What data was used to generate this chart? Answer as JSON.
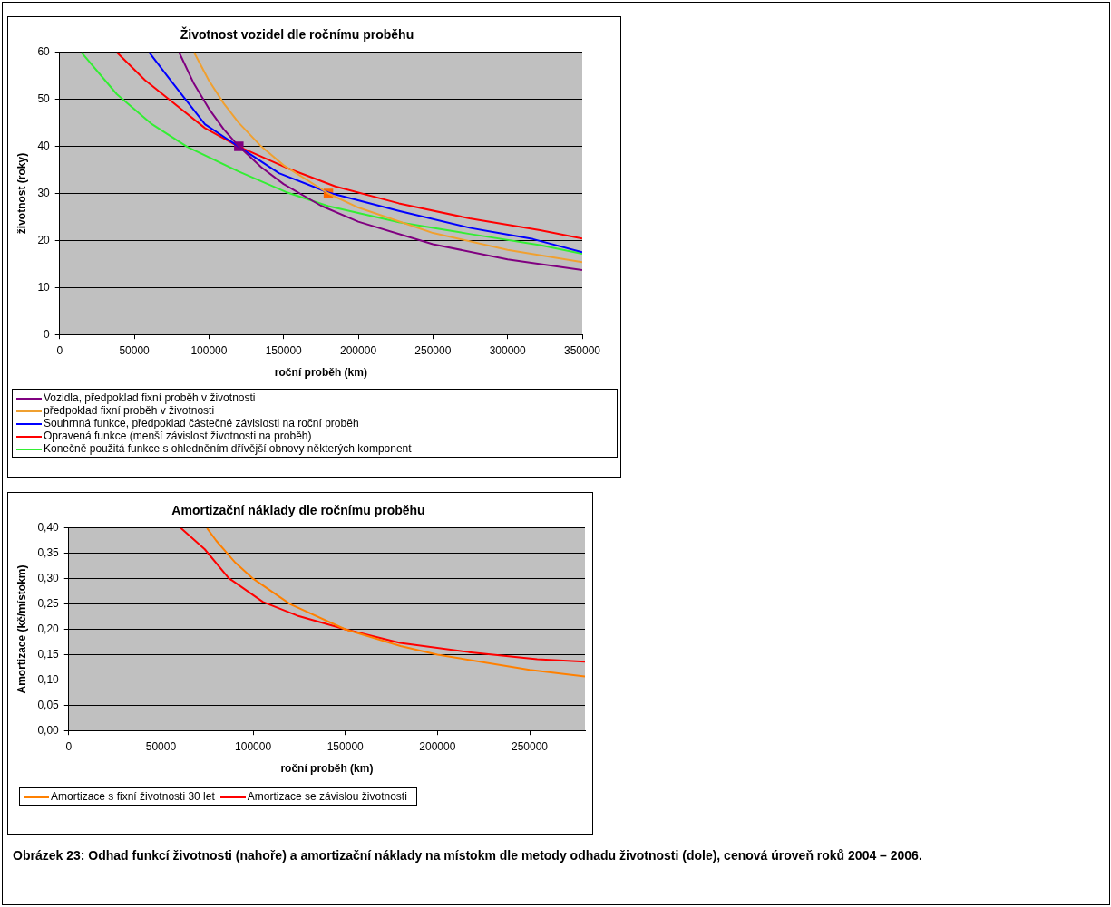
{
  "chart_data": [
    {
      "type": "line",
      "title": "Životnost vozidel dle ročnímu proběhu",
      "xlabel": "roční proběh (km)",
      "ylabel": "životnost (roky)",
      "xlim": [
        0,
        350000
      ],
      "xticks": [
        0,
        50000,
        100000,
        150000,
        200000,
        250000,
        300000,
        350000
      ],
      "ylim": [
        0,
        60
      ],
      "yticks": [
        0,
        10,
        20,
        30,
        40,
        50,
        60
      ],
      "grid": "y",
      "legend": "bottom",
      "marker": "none",
      "line_style": "solid",
      "series": [
        {
          "name": "Vozidla, předpoklad fixní proběh v životnosti",
          "color": "#800080",
          "x": [
            80000,
            90000,
            100000,
            110000,
            120000,
            135000,
            150000,
            175000,
            200000,
            250000,
            300000,
            350000
          ],
          "values": [
            60,
            53.3,
            48,
            43.6,
            40,
            35.6,
            32,
            27.4,
            24,
            19.2,
            16,
            13.7
          ]
        },
        {
          "name": "předpoklad fixní proběh v životnosti",
          "color": "#f0a030",
          "x": [
            90000,
            100000,
            110000,
            120000,
            135000,
            150000,
            180000,
            200000,
            250000,
            300000,
            350000
          ],
          "values": [
            60,
            54,
            49.1,
            45,
            40,
            36,
            30,
            27,
            21.6,
            18,
            15.4
          ]
        },
        {
          "name": "Souhrnná funkce, předpoklad částečné závislosti na roční proběh",
          "color": "#0000ff",
          "x": [
            60000,
            73700,
            97300,
            119700,
            146900,
            180000,
            227200,
            274500,
            317000,
            350000
          ],
          "values": [
            60,
            54.3,
            44.7,
            40,
            34.3,
            30.2,
            26.3,
            22.7,
            20.3,
            17.5
          ]
        },
        {
          "name": "Opravená funkce (menší závislost životnosti na proběh)",
          "color": "#ff0000",
          "x": [
            38300,
            57200,
            73700,
            97300,
            119700,
            151600,
            184700,
            227200,
            274500,
            321700,
            350000
          ],
          "values": [
            60,
            54.1,
            49.9,
            43.9,
            40,
            35.5,
            31.5,
            27.9,
            24.7,
            22.2,
            20.4
          ]
        },
        {
          "name": "Konečně použitá funkce s ohledněním dřívější obnovy některých komponent",
          "color": "#33ee33",
          "x": [
            14600,
            38300,
            61900,
            85500,
            119700,
            151600,
            180000,
            227200,
            274500,
            321700,
            350000
          ],
          "values": [
            60,
            51.1,
            44.7,
            39.9,
            34.7,
            30.3,
            27.3,
            23.9,
            21.4,
            19,
            17.2
          ]
        },
        {
          "type": "scatter",
          "marker": "square",
          "color": "#800080",
          "x": [
            120000
          ],
          "values": [
            40
          ]
        },
        {
          "type": "scatter",
          "marker": "square",
          "color": "#ff6600",
          "x": [
            180000
          ],
          "values": [
            30
          ]
        }
      ]
    },
    {
      "type": "line",
      "title": "Amortizační náklady dle ročnímu proběhu",
      "xlabel": "roční proběh (km)",
      "ylabel": "Amortizace (kč/místokm)",
      "xlim": [
        0,
        280000
      ],
      "xticks": [
        0,
        50000,
        100000,
        150000,
        200000,
        250000
      ],
      "ylim": [
        0,
        0.4
      ],
      "yticks": [
        {
          "value": 0,
          "label": "0,00"
        },
        {
          "value": 0.05,
          "label": "0,05"
        },
        {
          "value": 0.1,
          "label": "0,10"
        },
        {
          "value": 0.15,
          "label": "0,15"
        },
        {
          "value": 0.2,
          "label": "0,20"
        },
        {
          "value": 0.25,
          "label": "0,25"
        },
        {
          "value": 0.3,
          "label": "0,30"
        },
        {
          "value": 0.35,
          "label": "0,35"
        },
        {
          "value": 0.4,
          "label": "0,40"
        }
      ],
      "grid": "y",
      "legend": "bottom",
      "marker": "none",
      "line_style": "solid",
      "annotations": [
        "Obrázek 23: Odhad funkcí životnosti (nahoře) a amortizační náklady na místokm dle metody odhadu životnosti (dole), cenová úroveň roků 2004 – 2006."
      ],
      "series": [
        {
          "name": "Amortizace s fixní životnosti 30 let",
          "color": "#ff8000",
          "x": [
            75000,
            80000,
            90000,
            100000,
            120000,
            150000,
            180000,
            200000,
            250000,
            280000
          ],
          "values": [
            0.4,
            0.375,
            0.333,
            0.3,
            0.25,
            0.2,
            0.167,
            0.15,
            0.12,
            0.107
          ]
        },
        {
          "name": "Amortizace se závislou životnosti",
          "color": "#ff0000",
          "x": [
            60800,
            73800,
            86800,
            105400,
            124000,
            150000,
            179700,
            216900,
            254100,
            280000
          ],
          "values": [
            0.4,
            0.358,
            0.301,
            0.254,
            0.227,
            0.2,
            0.173,
            0.155,
            0.141,
            0.136
          ]
        }
      ]
    }
  ]
}
